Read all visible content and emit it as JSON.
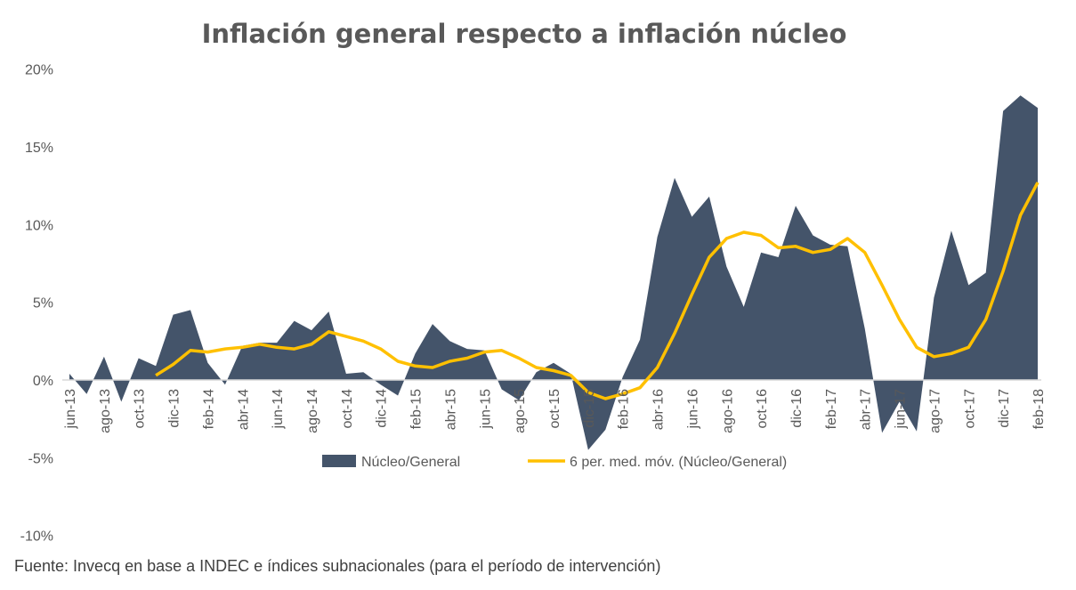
{
  "chart_data": {
    "type": "area",
    "title": "Inflación general respecto a inflación núcleo",
    "source": "Fuente: Invecq en base a INDEC e índices subnacionales (para el período de intervención)",
    "ylim": [
      -10,
      20
    ],
    "yticks": [
      20,
      15,
      10,
      5,
      0,
      -5,
      -10
    ],
    "ytick_labels": [
      "20%",
      "15%",
      "10%",
      "5%",
      "0%",
      "-5%",
      "-10%"
    ],
    "grid": false,
    "legend_placement": "bottom",
    "categories": [
      "jun-13",
      "jul-13",
      "ago-13",
      "sep-13",
      "oct-13",
      "nov-13",
      "dic-13",
      "ene-14",
      "feb-14",
      "mar-14",
      "abr-14",
      "may-14",
      "jun-14",
      "jul-14",
      "ago-14",
      "sep-14",
      "oct-14",
      "nov-14",
      "dic-14",
      "ene-15",
      "feb-15",
      "mar-15",
      "abr-15",
      "may-15",
      "jun-15",
      "jul-15",
      "ago-15",
      "sep-15",
      "oct-15",
      "nov-15",
      "dic-15",
      "ene-16",
      "feb-16",
      "mar-16",
      "abr-16",
      "may-16",
      "jun-16",
      "jul-16",
      "ago-16",
      "sep-16",
      "oct-16",
      "nov-16",
      "dic-16",
      "ene-17",
      "feb-17",
      "mar-17",
      "abr-17",
      "may-17",
      "jun-17",
      "jul-17",
      "ago-17",
      "sep-17",
      "oct-17",
      "nov-17",
      "dic-17",
      "ene-18",
      "feb-18"
    ],
    "xtick_labels": [
      "jun-13",
      "ago-13",
      "oct-13",
      "dic-13",
      "feb-14",
      "abr-14",
      "jun-14",
      "ago-14",
      "oct-14",
      "dic-14",
      "feb-15",
      "abr-15",
      "jun-15",
      "ago-15",
      "oct-15",
      "dic-15",
      "feb-16",
      "abr-16",
      "jun-16",
      "ago-16",
      "oct-16",
      "dic-16",
      "feb-17",
      "abr-17",
      "jun-17",
      "ago-17",
      "oct-17",
      "dic-17",
      "feb-18"
    ],
    "series": [
      {
        "name": "Núcleo/General",
        "type": "area",
        "color": "#44546A",
        "values": [
          0.4,
          -0.9,
          1.5,
          -1.4,
          1.4,
          0.9,
          4.2,
          4.5,
          1.1,
          -0.3,
          2.2,
          2.4,
          2.4,
          3.8,
          3.2,
          4.4,
          0.4,
          0.5,
          -0.3,
          -1.0,
          1.7,
          3.6,
          2.5,
          2.0,
          1.9,
          -0.6,
          -1.3,
          0.5,
          1.1,
          0.4,
          -4.5,
          -3.2,
          0.2,
          2.6,
          9.2,
          13.0,
          10.5,
          11.8,
          7.3,
          4.7,
          8.2,
          7.9,
          11.2,
          9.3,
          8.7,
          8.6,
          3.3,
          -3.4,
          -1.4,
          -3.3,
          5.3,
          9.6,
          6.1,
          6.9,
          17.3,
          18.3,
          17.5
        ]
      },
      {
        "name": "6 per. med. móv. (Núcleo/General)",
        "type": "line",
        "color": "#FFC000",
        "values": [
          null,
          null,
          null,
          null,
          null,
          0.3,
          1.0,
          1.9,
          1.8,
          2.0,
          2.1,
          2.3,
          2.1,
          2.0,
          2.3,
          3.1,
          2.8,
          2.5,
          2.0,
          1.2,
          0.9,
          0.8,
          1.2,
          1.4,
          1.8,
          1.9,
          1.4,
          0.8,
          0.6,
          0.3,
          -0.8,
          -1.2,
          -0.9,
          -0.5,
          0.8,
          3.0,
          5.5,
          7.9,
          9.1,
          9.5,
          9.3,
          8.5,
          8.6,
          8.2,
          8.4,
          9.1,
          8.2,
          6.1,
          3.9,
          2.1,
          1.5,
          1.7,
          2.1,
          3.9,
          7.0,
          10.6,
          12.7
        ]
      }
    ]
  }
}
